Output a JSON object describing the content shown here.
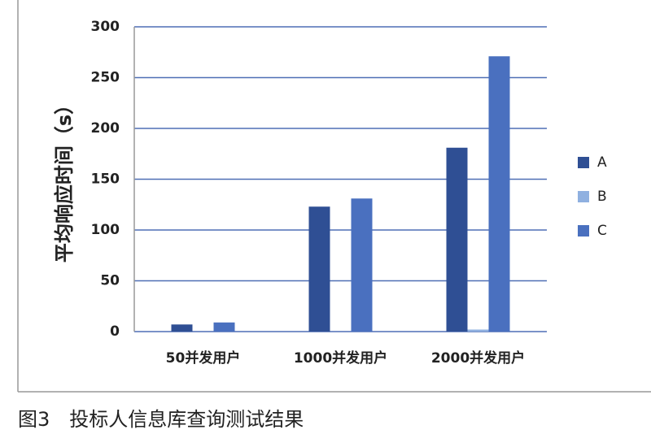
{
  "chart_data": {
    "type": "bar",
    "ylabel": "平均响应时间（s）",
    "caption": "图3　投标人信息库查询测试结果",
    "categories": [
      "50并发用户",
      "1000并发用户",
      "2000并发用户"
    ],
    "series": [
      {
        "name": "A",
        "color": "#2f4f94",
        "values": [
          7,
          123,
          181
        ]
      },
      {
        "name": "B",
        "color": "#8fb0e0",
        "values": [
          0,
          0,
          2
        ]
      },
      {
        "name": "C",
        "color": "#4a70bf",
        "values": [
          9,
          131,
          271
        ]
      }
    ],
    "ylim": [
      0,
      300
    ],
    "yticks": [
      0,
      50,
      100,
      150,
      200,
      250,
      300
    ],
    "grid": true,
    "legend": "right"
  }
}
